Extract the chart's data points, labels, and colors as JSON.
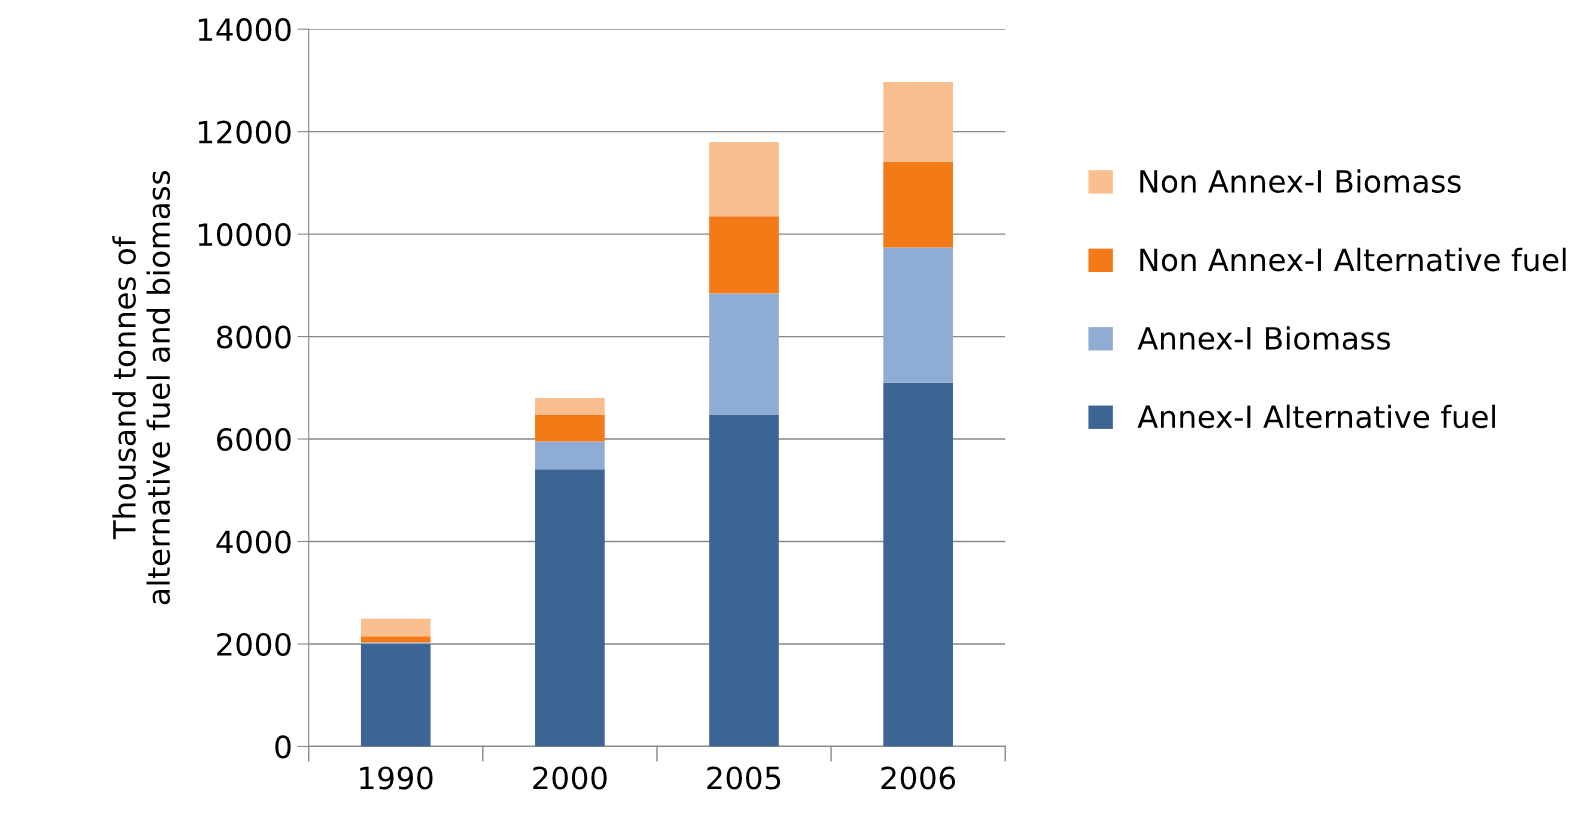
{
  "chart_data": {
    "type": "bar",
    "stacked": true,
    "ylabel": "Thousand tonnes of\nalternative fuel and biomass",
    "categories": [
      "1990",
      "2000",
      "2005",
      "2006"
    ],
    "series": [
      {
        "name": "Annex-I Alternative fuel",
        "color": "#3c6594",
        "values": [
          2000,
          5410,
          6480,
          7100
        ]
      },
      {
        "name": "Annex-I Biomass",
        "color": "#8fadd4",
        "values": [
          30,
          540,
          2360,
          2640
        ]
      },
      {
        "name": "Non Annex-I Alternative fuel",
        "color": "#f47a17",
        "values": [
          120,
          520,
          1510,
          1670
        ]
      },
      {
        "name": "Non Annex-I Biomass",
        "color": "#f9bf8f",
        "values": [
          340,
          330,
          1450,
          1560
        ]
      }
    ],
    "ylim": [
      0,
      14000
    ],
    "yticks": [
      0,
      2000,
      4000,
      6000,
      8000,
      10000,
      12000,
      14000
    ],
    "grid": "y",
    "legend": "right"
  }
}
